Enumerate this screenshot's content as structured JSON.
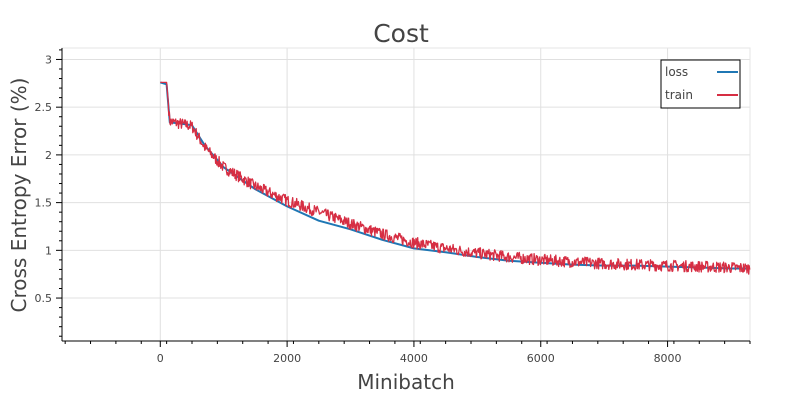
{
  "chart_data": {
    "type": "line",
    "title": "Cost",
    "xlabel": "Minibatch",
    "ylabel": "Cross Entropy Error (%)",
    "xlim": [
      -1550,
      9300
    ],
    "ylim": [
      0.05,
      3.12
    ],
    "x_ticks": [
      0,
      2000,
      4000,
      6000,
      8000
    ],
    "x_tick_labels": [
      "0",
      "2000",
      "4000",
      "6000",
      "8000"
    ],
    "y_ticks": [
      0.5,
      1,
      1.5,
      2,
      2.5,
      3
    ],
    "y_tick_labels": [
      "0.5",
      "1",
      "1.5",
      "2",
      "2.5",
      "3"
    ],
    "grid": true,
    "legend_position": "top-right",
    "series": [
      {
        "name": "loss",
        "color": "#1f77b4",
        "x": [
          0,
          100,
          150,
          300,
          500,
          700,
          1000,
          1500,
          2000,
          2500,
          3000,
          3500,
          4000,
          4500,
          5000,
          5500,
          6000,
          6500,
          7000,
          7500,
          8000,
          8500,
          9000,
          9300
        ],
        "values": [
          2.76,
          2.74,
          2.34,
          2.33,
          2.31,
          2.1,
          1.87,
          1.64,
          1.46,
          1.31,
          1.22,
          1.11,
          1.02,
          0.98,
          0.93,
          0.89,
          0.87,
          0.85,
          0.84,
          0.84,
          0.83,
          0.82,
          0.81,
          0.81
        ]
      },
      {
        "name": "train",
        "color": "#d62e43",
        "x": [
          0,
          100,
          150,
          300,
          500,
          700,
          1000,
          1500,
          2000,
          2500,
          3000,
          3500,
          4000,
          4500,
          5000,
          5500,
          6000,
          6500,
          7000,
          7500,
          8000,
          8500,
          9000,
          9300
        ],
        "values": [
          2.76,
          2.76,
          2.35,
          2.33,
          2.3,
          2.08,
          1.87,
          1.67,
          1.52,
          1.4,
          1.28,
          1.17,
          1.08,
          1.02,
          0.97,
          0.93,
          0.9,
          0.88,
          0.86,
          0.85,
          0.84,
          0.83,
          0.82,
          0.81
        ],
        "noise_amplitude": 0.06
      }
    ]
  }
}
